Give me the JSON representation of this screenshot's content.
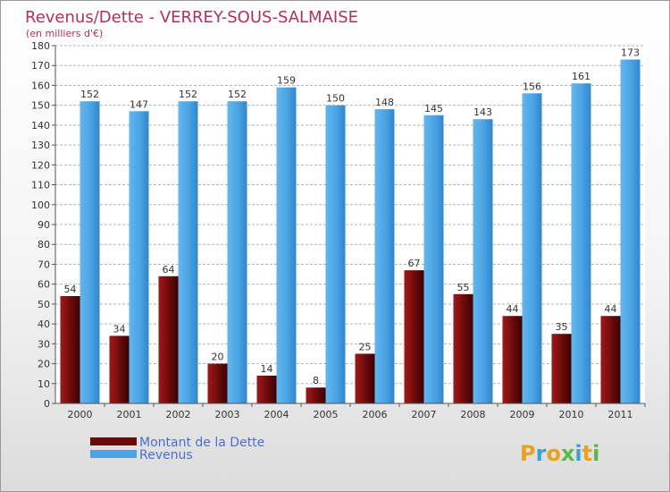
{
  "title": "Revenus/Dette - VERREY-SOUS-SALMAISE",
  "subtitle": "(en milliers d'€)",
  "brand": {
    "letters": [
      "P",
      "r",
      "o",
      "x",
      "i",
      "t",
      "i"
    ],
    "colors": [
      "#e8a21b",
      "#3aa0d8",
      "#e8a21b",
      "#58b848",
      "#3aa0d8",
      "#e8a21b",
      "#58b848"
    ]
  },
  "colors": {
    "dette": "#6b0a0a",
    "revenus": "#4ba3e3",
    "title": "#b03060",
    "legend_text": "#4a6fd0"
  },
  "chart_data": {
    "type": "bar",
    "categories": [
      "2000",
      "2001",
      "2002",
      "2003",
      "2004",
      "2005",
      "2006",
      "2007",
      "2008",
      "2009",
      "2010",
      "2011"
    ],
    "series": [
      {
        "name": "Montant de la Dette",
        "values": [
          54,
          34,
          64,
          20,
          14,
          8,
          25,
          67,
          55,
          44,
          35,
          44
        ]
      },
      {
        "name": "Revenus",
        "values": [
          152,
          147,
          152,
          152,
          159,
          150,
          148,
          145,
          143,
          156,
          161,
          173
        ]
      }
    ],
    "ylim": [
      0,
      180
    ],
    "yticks": [
      0,
      10,
      20,
      30,
      40,
      50,
      60,
      70,
      80,
      90,
      100,
      110,
      120,
      130,
      140,
      150,
      160,
      170,
      180
    ],
    "grid": true,
    "legend": "bottom-left"
  }
}
